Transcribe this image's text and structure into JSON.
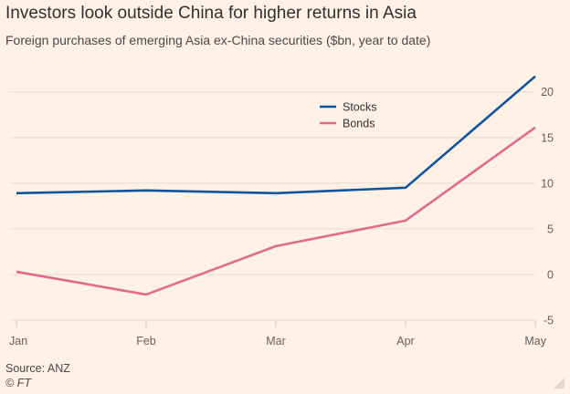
{
  "title": "Investors look outside China for higher returns in Asia",
  "subtitle": "Foreign purchases of emerging Asia ex-China securities ($bn, year to date)",
  "source": "Source: ANZ",
  "copyright": "© FT",
  "chart_data": {
    "type": "line",
    "title": "Investors look outside China for higher returns in Asia",
    "subtitle": "Foreign purchases of emerging Asia ex-China securities ($bn, year to date)",
    "categories": [
      "Jan",
      "Feb",
      "Mar",
      "Apr",
      "May"
    ],
    "series": [
      {
        "name": "Stocks",
        "color": "#0F5499",
        "values": [
          8.9,
          9.2,
          8.9,
          9.5,
          21.7
        ]
      },
      {
        "name": "Bonds",
        "color": "#E06A8A",
        "values": [
          0.3,
          -2.2,
          3.1,
          5.9,
          16.1
        ]
      }
    ],
    "ylim": [
      -5,
      20
    ],
    "yticks": [
      "20",
      "15",
      "10",
      "5",
      "0",
      "-5"
    ],
    "grid": true,
    "legend": "top-center",
    "yaxis_side": "right"
  }
}
